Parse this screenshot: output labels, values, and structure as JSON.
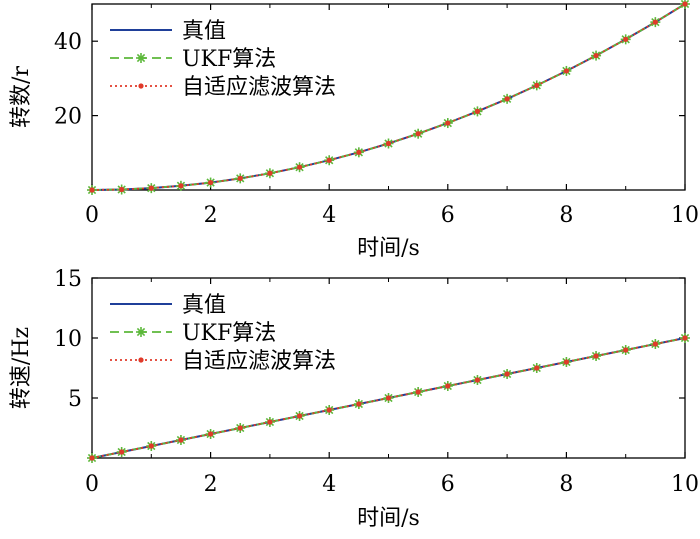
{
  "chart_data": [
    {
      "type": "line",
      "title": "",
      "xlabel": "时间/s",
      "ylabel": "转数/r",
      "xlim": [
        0,
        10
      ],
      "ylim": [
        0,
        50
      ],
      "xticks": [
        0,
        2,
        4,
        6,
        8,
        10
      ],
      "xtick_labels": [
        "0",
        "2",
        "4",
        "6",
        "8",
        "10"
      ],
      "yticks": [
        20,
        40
      ],
      "ytick_labels": [
        "20",
        "40"
      ],
      "legend_position": "top-left",
      "x": [
        0,
        0.5,
        1,
        1.5,
        2,
        2.5,
        3,
        3.5,
        4,
        4.5,
        5,
        5.5,
        6,
        6.5,
        7,
        7.5,
        8,
        8.5,
        9,
        9.5,
        10
      ],
      "series": [
        {
          "name": "真值",
          "color": "#1f3f99",
          "style": "solid",
          "marker": "none",
          "values": [
            0,
            0.13,
            0.5,
            1.13,
            2.0,
            3.13,
            4.5,
            6.13,
            8.0,
            10.13,
            12.5,
            15.13,
            18.0,
            21.13,
            24.5,
            28.13,
            32.0,
            36.13,
            40.5,
            45.13,
            50.0
          ]
        },
        {
          "name": "UKF算法",
          "color": "#5cb83a",
          "style": "dashed",
          "marker": "asterisk",
          "values": [
            0,
            0.13,
            0.5,
            1.13,
            2.0,
            3.13,
            4.5,
            6.13,
            8.0,
            10.13,
            12.5,
            15.13,
            18.0,
            21.13,
            24.5,
            28.13,
            32.0,
            36.13,
            40.5,
            45.13,
            50.0
          ]
        },
        {
          "name": "自适应滤波算法",
          "color": "#e03a2a",
          "style": "dotted",
          "marker": "dot",
          "values": [
            0,
            0.13,
            0.5,
            1.13,
            2.0,
            3.13,
            4.5,
            6.13,
            8.0,
            10.13,
            12.5,
            15.13,
            18.0,
            21.13,
            24.5,
            28.13,
            32.0,
            36.13,
            40.5,
            45.13,
            50.0
          ]
        }
      ]
    },
    {
      "type": "line",
      "title": "",
      "xlabel": "时间/s",
      "ylabel": "转速/Hz",
      "xlim": [
        0,
        10
      ],
      "ylim": [
        0,
        15
      ],
      "xticks": [
        0,
        2,
        4,
        6,
        8,
        10
      ],
      "xtick_labels": [
        "0",
        "2",
        "4",
        "6",
        "8",
        "10"
      ],
      "yticks": [
        5,
        10,
        15
      ],
      "ytick_labels": [
        "5",
        "10",
        "15"
      ],
      "legend_position": "top-left",
      "x": [
        0,
        0.5,
        1,
        1.5,
        2,
        2.5,
        3,
        3.5,
        4,
        4.5,
        5,
        5.5,
        6,
        6.5,
        7,
        7.5,
        8,
        8.5,
        9,
        9.5,
        10
      ],
      "series": [
        {
          "name": "真值",
          "color": "#1f3f99",
          "style": "solid",
          "marker": "none",
          "values": [
            0,
            0.5,
            1,
            1.5,
            2,
            2.5,
            3,
            3.5,
            4,
            4.5,
            5,
            5.5,
            6,
            6.5,
            7,
            7.5,
            8,
            8.5,
            9,
            9.5,
            10
          ]
        },
        {
          "name": "UKF算法",
          "color": "#5cb83a",
          "style": "dashed",
          "marker": "asterisk",
          "values": [
            0,
            0.5,
            1,
            1.5,
            2,
            2.5,
            3,
            3.5,
            4,
            4.5,
            5,
            5.5,
            6,
            6.5,
            7,
            7.5,
            8,
            8.5,
            9,
            9.5,
            10
          ]
        },
        {
          "name": "自适应滤波算法",
          "color": "#e03a2a",
          "style": "dotted",
          "marker": "dot",
          "values": [
            0,
            0.5,
            1,
            1.5,
            2,
            2.5,
            3,
            3.5,
            4,
            4.5,
            5,
            5.5,
            6,
            6.5,
            7,
            7.5,
            8,
            8.5,
            9,
            9.5,
            10
          ]
        }
      ]
    }
  ]
}
